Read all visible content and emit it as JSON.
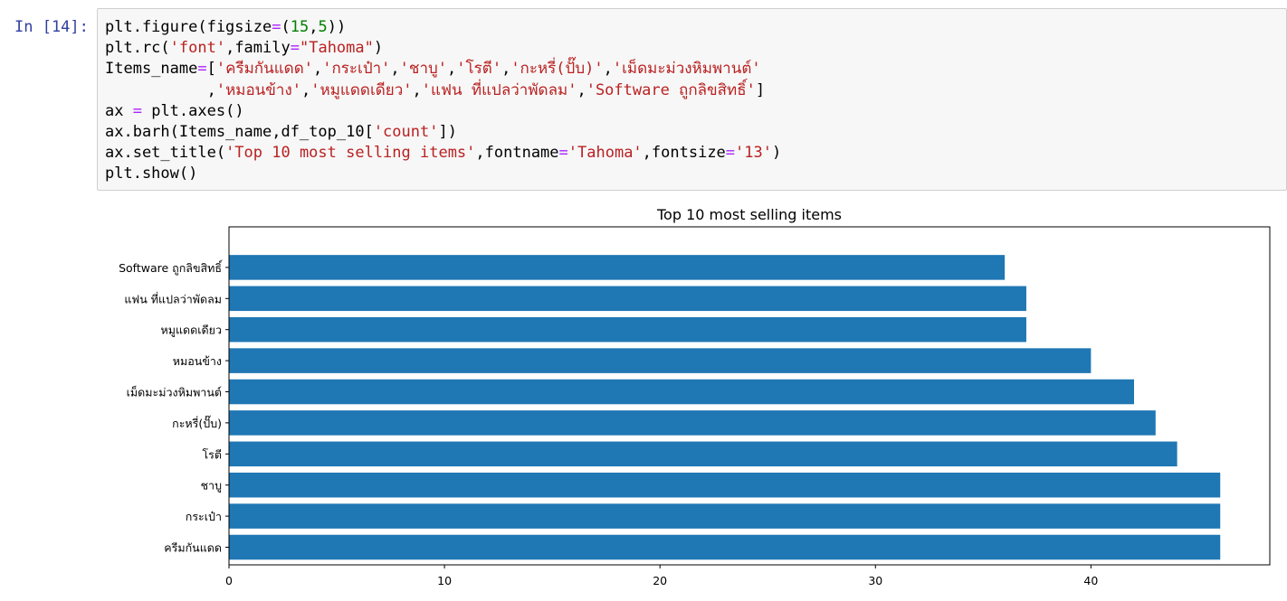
{
  "cell": {
    "prompt": "In [14]:",
    "code_lines": [
      [
        {
          "t": "plt.figure(figsize",
          "c": ""
        },
        {
          "t": "=",
          "c": "op"
        },
        {
          "t": "(",
          "c": ""
        },
        {
          "t": "15",
          "c": "num"
        },
        {
          "t": ",",
          "c": ""
        },
        {
          "t": "5",
          "c": "num"
        },
        {
          "t": "))",
          "c": ""
        }
      ],
      [
        {
          "t": "plt.rc(",
          "c": ""
        },
        {
          "t": "'font'",
          "c": "str"
        },
        {
          "t": ",family",
          "c": ""
        },
        {
          "t": "=",
          "c": "op"
        },
        {
          "t": "\"Tahoma\"",
          "c": "str"
        },
        {
          "t": ")",
          "c": ""
        }
      ],
      [
        {
          "t": "Items_name",
          "c": ""
        },
        {
          "t": "=",
          "c": "op"
        },
        {
          "t": "[",
          "c": ""
        },
        {
          "t": "'ครีมกันแดด'",
          "c": "str"
        },
        {
          "t": ",",
          "c": ""
        },
        {
          "t": "'กระเป๋า'",
          "c": "str"
        },
        {
          "t": ",",
          "c": ""
        },
        {
          "t": "'ชาบู'",
          "c": "str"
        },
        {
          "t": ",",
          "c": ""
        },
        {
          "t": "'โรตี'",
          "c": "str"
        },
        {
          "t": ",",
          "c": ""
        },
        {
          "t": "'กะหรี่(ปั๊บ)'",
          "c": "str"
        },
        {
          "t": ",",
          "c": ""
        },
        {
          "t": "'เม็ดมะม่วงหิมพานต์'",
          "c": "str"
        }
      ],
      [
        {
          "t": "           ,",
          "c": ""
        },
        {
          "t": "'หมอนข้าง'",
          "c": "str"
        },
        {
          "t": ",",
          "c": ""
        },
        {
          "t": "'หมูแดดเดียว'",
          "c": "str"
        },
        {
          "t": ",",
          "c": ""
        },
        {
          "t": "'แฟน ที่แปลว่าพัดลม'",
          "c": "str"
        },
        {
          "t": ",",
          "c": ""
        },
        {
          "t": "'Software ถูกลิขสิทธิ์'",
          "c": "str"
        },
        {
          "t": "]",
          "c": ""
        }
      ],
      [
        {
          "t": "ax ",
          "c": ""
        },
        {
          "t": "=",
          "c": "op"
        },
        {
          "t": " plt.axes()",
          "c": ""
        }
      ],
      [
        {
          "t": "ax.barh(Items_name,df_top_10[",
          "c": ""
        },
        {
          "t": "'count'",
          "c": "str"
        },
        {
          "t": "])",
          "c": ""
        }
      ],
      [
        {
          "t": "ax.set_title(",
          "c": ""
        },
        {
          "t": "'Top 10 most selling items'",
          "c": "str"
        },
        {
          "t": ",fontname",
          "c": ""
        },
        {
          "t": "=",
          "c": "op"
        },
        {
          "t": "'Tahoma'",
          "c": "str"
        },
        {
          "t": ",fontsize",
          "c": ""
        },
        {
          "t": "=",
          "c": "op"
        },
        {
          "t": "'13'",
          "c": "str"
        },
        {
          "t": ")",
          "c": ""
        }
      ],
      [
        {
          "t": "plt.show()",
          "c": ""
        }
      ]
    ]
  },
  "colors": {
    "bar": "#1f77b4",
    "axis": "#000000"
  },
  "chart_data": {
    "type": "bar",
    "orientation": "horizontal",
    "title": "Top 10 most selling items",
    "xlabel": "",
    "ylabel": "",
    "categories": [
      "ครีมกันแดด",
      "กระเป๋า",
      "ชาบู",
      "โรตี",
      "กะหรี่(ปั๊บ)",
      "เม็ดมะม่วงหิมพานต์",
      "หมอนข้าง",
      "หมูแดดเดียว",
      "แฟน ที่แปลว่าพัดลม",
      "Software ถูกลิขสิทธิ์"
    ],
    "values": [
      46,
      46,
      46,
      44,
      43,
      42,
      40,
      37,
      37,
      36
    ],
    "xlim": [
      0,
      48.3
    ],
    "xticks": [
      0,
      10,
      20,
      30,
      40
    ],
    "grid": false
  }
}
